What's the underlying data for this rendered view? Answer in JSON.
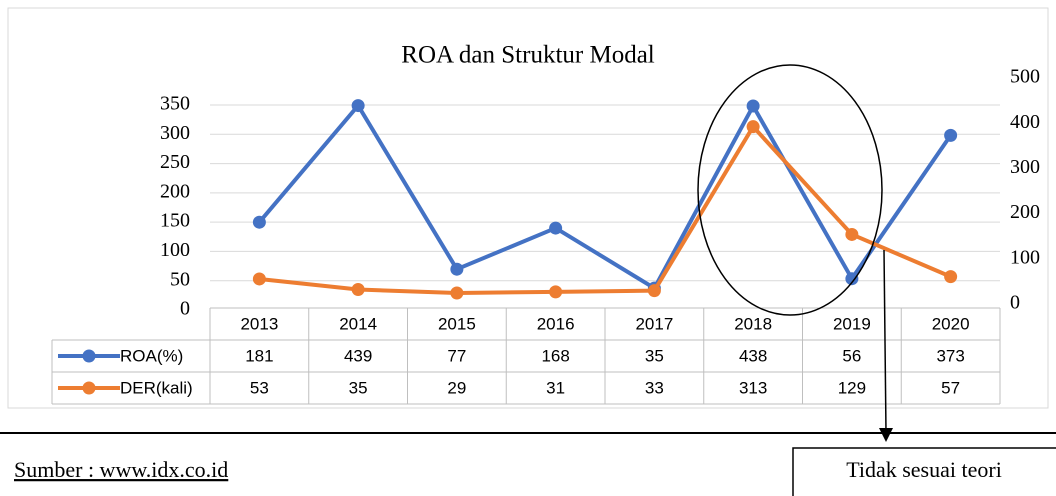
{
  "chart_data": {
    "type": "line",
    "title": "ROA dan Struktur Modal",
    "categories": [
      "2013",
      "2014",
      "2015",
      "2016",
      "2017",
      "2018",
      "2019",
      "2020"
    ],
    "series": [
      {
        "name": "ROA(%)",
        "color": "#4472c4",
        "axis": "y2",
        "values": [
          181,
          439,
          77,
          168,
          35,
          438,
          56,
          373
        ]
      },
      {
        "name": "DER(kali)",
        "color": "#ed7d31",
        "values": [
          53,
          35,
          29,
          31,
          33,
          313,
          129,
          57
        ]
      }
    ],
    "ylim": [
      0,
      350
    ],
    "yticks": [
      0,
      50,
      100,
      150,
      200,
      250,
      300,
      350
    ],
    "y2lim": [
      0,
      500
    ],
    "y2ticks": [
      0,
      100,
      200,
      300,
      400,
      500
    ],
    "grid": true,
    "annotation": "Tidak sesuai teori",
    "source": "Sumber : www.idx.co.id"
  }
}
